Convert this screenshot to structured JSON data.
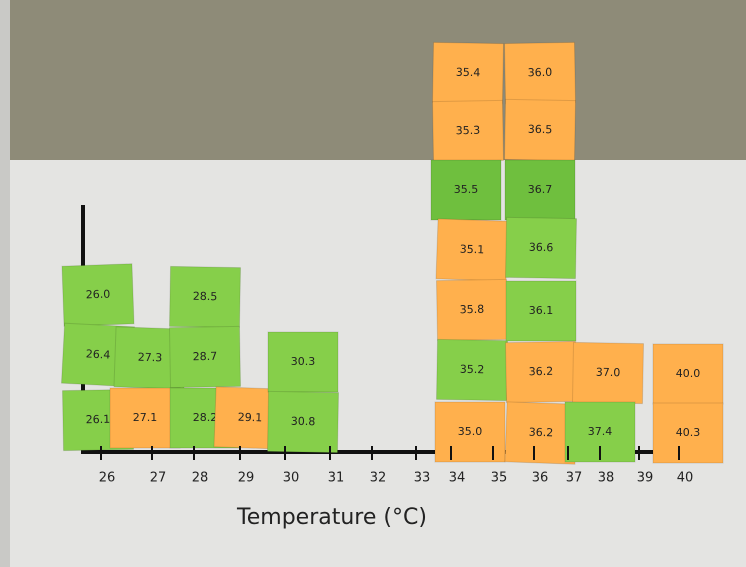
{
  "notes": [
    {
      "label": "26.0",
      "color": "#86cf4a"
    },
    {
      "label": "26.4",
      "color": "#86cf4a"
    },
    {
      "label": "26.1",
      "color": "#86cf4a"
    },
    {
      "label": "27.3",
      "color": "#86cf4a"
    },
    {
      "label": "27.1",
      "color": "#ffb04d"
    },
    {
      "label": "28.5",
      "color": "#86cf4a"
    },
    {
      "label": "28.7",
      "color": "#86cf4a"
    },
    {
      "label": "28.2",
      "color": "#86cf4a"
    },
    {
      "label": "29.1",
      "color": "#ffb04d"
    },
    {
      "label": "30.3",
      "color": "#86cf4a"
    },
    {
      "label": "30.8",
      "color": "#86cf4a"
    },
    {
      "label": "35.4",
      "color": "#ffb04d"
    },
    {
      "label": "35.3",
      "color": "#ffb04d"
    },
    {
      "label": "35.5",
      "color": "#6fbf3e"
    },
    {
      "label": "35.1",
      "color": "#ffb04d"
    },
    {
      "label": "35.8",
      "color": "#ffb04d"
    },
    {
      "label": "35.2",
      "color": "#86cf4a"
    },
    {
      "label": "35.0",
      "color": "#ffb04d"
    },
    {
      "label": "36.0",
      "color": "#ffb04d"
    },
    {
      "label": "36.5",
      "color": "#ffb04d"
    },
    {
      "label": "36.7",
      "color": "#6fbf3e"
    },
    {
      "label": "36.6",
      "color": "#86cf4a"
    },
    {
      "label": "36.1",
      "color": "#86cf4a"
    },
    {
      "label": "36.2",
      "color": "#ffb04d"
    },
    {
      "label": "36.2",
      "color": "#ffb04d"
    },
    {
      "label": "37.0",
      "color": "#ffb04d"
    },
    {
      "label": "37.4",
      "color": "#86cf4a"
    },
    {
      "label": "40.0",
      "color": "#ffb04d"
    },
    {
      "label": "40.3",
      "color": "#ffb04d"
    }
  ],
  "axis": {
    "ticks": [
      "26",
      "27",
      "28",
      "29",
      "30",
      "31",
      "32",
      "33",
      "34",
      "35",
      "36",
      "37",
      "38",
      "39",
      "40"
    ],
    "label": "Temperature (°C)"
  }
}
